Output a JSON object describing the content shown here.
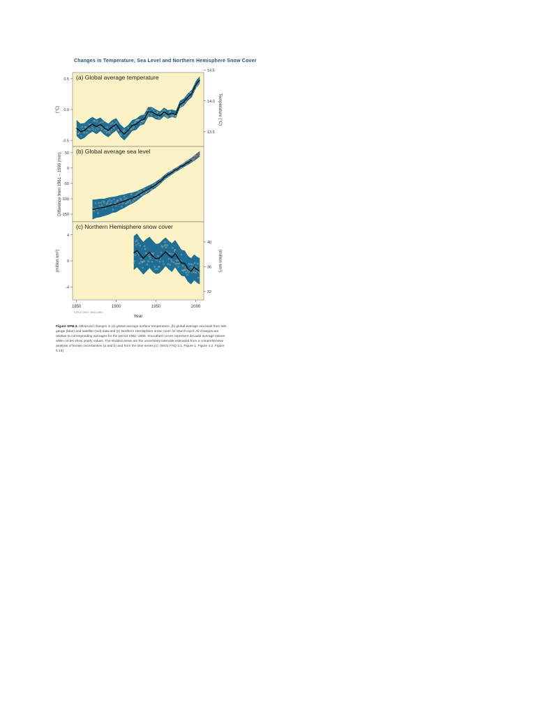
{
  "figure": {
    "title": "Changes in Temperature, Sea Level and Northern Hemisphere Snow Cover",
    "caption_label": "Figure SPM.3.",
    "caption_text": "Observed changes in (a) global average surface temperature, (b) global average sea level from tide gauge (blue) and satellite (red) data and (c) Northern Hemisphere snow cover for March-April. All changes are relative to corresponding averages for the period 1961–1990. Smoothed curves represent decadal average values while circles show yearly values. The shaded areas are the uncertainty intervals estimated from a comprehensive analysis of known uncertainties (a and b) and from the time series (c). {WG1 FAQ 3.1, Figure 1, Figure 4.2, Figure 5.13}",
    "credit": "©IPCC 2007: WG1-AR4",
    "xlabel": "Year"
  },
  "colors": {
    "panel_bg": "#fbf3c6",
    "band": "#1f6e93",
    "line": "#0a1a28",
    "points": "#b9b3a3",
    "satellite": "#d9534f"
  },
  "chart_data": [
    {
      "type": "line",
      "title": "(a) Global average temperature",
      "ylabel": "(°C)",
      "ylabel_right": "Temperature (°C)",
      "ylim": [
        -0.6,
        0.6
      ],
      "yticks": [
        -0.5,
        0.0,
        0.5
      ],
      "ytick_labels": [
        "-0.5",
        "0.0",
        "0.5"
      ],
      "yticks_right": [
        -0.36,
        0.14,
        0.64
      ],
      "ytick_labels_right": [
        "13.5",
        "14.0",
        "14.5"
      ],
      "xlim": [
        1845,
        2010
      ],
      "x": [
        1850,
        1855,
        1860,
        1865,
        1870,
        1875,
        1880,
        1885,
        1890,
        1895,
        1900,
        1905,
        1910,
        1915,
        1920,
        1925,
        1930,
        1935,
        1940,
        1945,
        1950,
        1955,
        1960,
        1965,
        1970,
        1975,
        1980,
        1985,
        1990,
        1995,
        2000,
        2005
      ],
      "series": [
        {
          "values": [
            -0.3,
            -0.36,
            -0.34,
            -0.28,
            -0.24,
            -0.28,
            -0.24,
            -0.3,
            -0.34,
            -0.28,
            -0.24,
            -0.34,
            -0.4,
            -0.34,
            -0.26,
            -0.24,
            -0.18,
            -0.16,
            -0.04,
            -0.04,
            -0.08,
            -0.1,
            -0.04,
            -0.08,
            -0.06,
            -0.08,
            0.08,
            0.12,
            0.2,
            0.26,
            0.4,
            0.48
          ]
        }
      ],
      "band_halfwidth": [
        0.13,
        0.13,
        0.12,
        0.12,
        0.12,
        0.12,
        0.11,
        0.11,
        0.11,
        0.11,
        0.1,
        0.1,
        0.1,
        0.09,
        0.09,
        0.09,
        0.08,
        0.08,
        0.08,
        0.08,
        0.08,
        0.07,
        0.07,
        0.07,
        0.06,
        0.06,
        0.06,
        0.06,
        0.06,
        0.06,
        0.06,
        0.06
      ]
    },
    {
      "type": "line",
      "title": "(b) Global average sea level",
      "ylabel": "Difference from 1961 – 1990 (mm)",
      "ylim": [
        -175,
        70
      ],
      "yticks": [
        50,
        0,
        -50,
        -100,
        -150
      ],
      "ytick_labels": [
        "50",
        "0",
        "-50",
        "-100",
        "-150"
      ],
      "xlim": [
        1845,
        2010
      ],
      "x": [
        1870,
        1875,
        1880,
        1885,
        1890,
        1895,
        1900,
        1905,
        1910,
        1915,
        1920,
        1925,
        1930,
        1935,
        1940,
        1945,
        1950,
        1955,
        1960,
        1965,
        1970,
        1975,
        1980,
        1985,
        1990,
        1995,
        2000,
        2005
      ],
      "series": [
        {
          "values": [
            -135,
            -132,
            -130,
            -128,
            -124,
            -120,
            -118,
            -112,
            -108,
            -102,
            -98,
            -92,
            -84,
            -76,
            -70,
            -62,
            -54,
            -44,
            -32,
            -22,
            -14,
            -6,
            2,
            10,
            18,
            26,
            36,
            46
          ]
        }
      ],
      "band_halfwidth": [
        32,
        30,
        30,
        28,
        28,
        26,
        26,
        24,
        22,
        20,
        18,
        16,
        14,
        12,
        12,
        10,
        10,
        9,
        8,
        8,
        7,
        7,
        7,
        7,
        8,
        8,
        9,
        9
      ]
    },
    {
      "type": "line",
      "title": "(c) Northern Hemisphere snow cover",
      "ylabel": "(million km²)",
      "ylabel_right": "(million km²)",
      "ylim": [
        -6,
        6
      ],
      "yticks": [
        4,
        0,
        -4
      ],
      "ytick_labels": [
        "4",
        "0",
        "-4"
      ],
      "yticks_right": [
        2.9,
        -0.9,
        -4.7
      ],
      "ytick_labels_right": [
        "40",
        "36",
        "32"
      ],
      "xlim": [
        1845,
        2010
      ],
      "x": [
        1922,
        1926,
        1930,
        1934,
        1938,
        1942,
        1946,
        1950,
        1954,
        1958,
        1962,
        1966,
        1970,
        1974,
        1978,
        1982,
        1986,
        1990,
        1994,
        1998,
        2002,
        2005
      ],
      "series": [
        {
          "values": [
            1.2,
            1.6,
            1.0,
            0.4,
            0.9,
            1.3,
            0.7,
            0.3,
            0.4,
            0.9,
            1.4,
            0.9,
            0.5,
            1.1,
            0.4,
            -0.3,
            -0.4,
            -1.2,
            -1.6,
            -1.0,
            -1.4,
            -1.6
          ]
        }
      ],
      "band_halfwidth": [
        2.6,
        2.6,
        2.5,
        2.5,
        2.5,
        2.4,
        2.4,
        2.3,
        2.3,
        2.3,
        2.2,
        2.2,
        2.2,
        2.1,
        2.1,
        2.0,
        2.0,
        2.0,
        2.0,
        2.0,
        2.0,
        2.0
      ]
    }
  ],
  "xaxis": {
    "ticks": [
      1850,
      1900,
      1950,
      2000
    ],
    "tick_labels": [
      "1850",
      "1900",
      "1950",
      "2000"
    ]
  }
}
